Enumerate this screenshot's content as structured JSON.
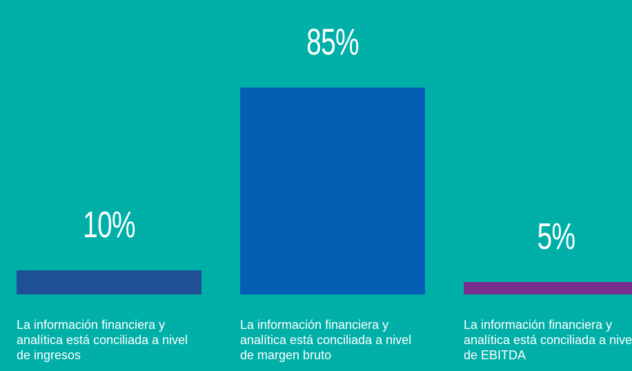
{
  "chart_data": {
    "type": "bar",
    "categories": [
      "La información financiera y analítica está conciliada a nivel de ingresos",
      "La información financiera y analítica está conciliada a nivel de margen bruto",
      "La información financiera y analítica está conciliada a nivel de EBITDA"
    ],
    "values": [
      10,
      85,
      5
    ],
    "value_labels": [
      "10%",
      "85%",
      "5%"
    ],
    "colors": [
      "#1f4f94",
      "#045fb4",
      "#7a2f8e"
    ],
    "background": "#00afa8"
  }
}
